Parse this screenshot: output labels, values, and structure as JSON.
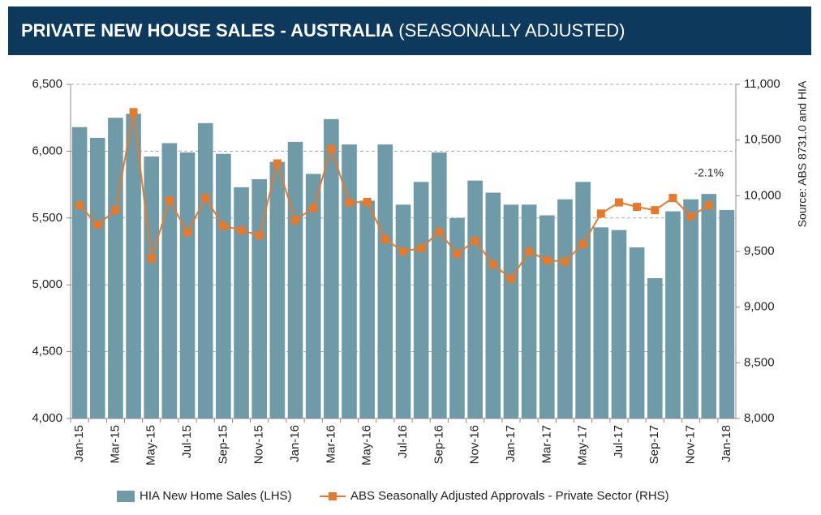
{
  "chart_data": {
    "type": "bar_line",
    "title": "PRIVATE NEW HOUSE SALES -  AUSTRALIA",
    "subtitle": "(SEASONALLY ADJUSTED)",
    "source": "Source: ABS 8731.0 and HIA",
    "annotation": "-2.1%",
    "categories": [
      "Jan-15",
      null,
      "Mar-15",
      null,
      "May-15",
      null,
      "Jul-15",
      null,
      "Sep-15",
      null,
      "Nov-15",
      null,
      "Jan-16",
      null,
      "Mar-16",
      null,
      "May-16",
      null,
      "Jul-16",
      null,
      "Sep-16",
      null,
      "Nov-16",
      null,
      "Jan-17",
      null,
      "Mar-17",
      null,
      "May-17",
      null,
      "Jul-17",
      null,
      "Sep-17",
      null,
      "Nov-17",
      null,
      "Jan-18"
    ],
    "series": [
      {
        "name": "HIA New Home Sales (LHS)",
        "color": "#6f9aa8",
        "axis": "y",
        "values": [
          6180,
          6100,
          6250,
          6280,
          5960,
          6060,
          5990,
          6210,
          5980,
          5730,
          5790,
          5920,
          6070,
          5830,
          6240,
          6050,
          5630,
          6050,
          5600,
          5770,
          5990,
          5500,
          5780,
          5690,
          5600,
          5600,
          5520,
          5640,
          5770,
          5430,
          5410,
          5280,
          5050,
          5550,
          5640,
          5680,
          5560
        ]
      },
      {
        "name": "ABS Seasonally Adjusted Approvals - Private Sector (RHS)",
        "color": "#e8782a",
        "axis": "y2",
        "values": [
          9915,
          9740,
          9870,
          10750,
          9435,
          9960,
          9670,
          9980,
          9730,
          9690,
          9645,
          10290,
          9780,
          9890,
          10420,
          9940,
          9945,
          9610,
          9500,
          9530,
          9675,
          9480,
          9595,
          9385,
          9255,
          9500,
          9420,
          9410,
          9565,
          9840,
          9940,
          9900,
          9870,
          9980,
          9815,
          9915,
          null
        ]
      }
    ],
    "ylim": [
      4000,
      6500
    ],
    "yticks": [
      {
        "value": 4000,
        "label": "4,000"
      },
      {
        "value": 4500,
        "label": "4,500"
      },
      {
        "value": 5000,
        "label": "5,000"
      },
      {
        "value": 5500,
        "label": "5,500"
      },
      {
        "value": 6000,
        "label": "6,000"
      },
      {
        "value": 6500,
        "label": "6,500"
      }
    ],
    "y2lim": [
      8000,
      11000
    ],
    "y2ticks": [
      {
        "value": 8000,
        "label": "8,000"
      },
      {
        "value": 8500,
        "label": "8,500"
      },
      {
        "value": 9000,
        "label": "9,000"
      },
      {
        "value": 9500,
        "label": "9,500"
      },
      {
        "value": 10000,
        "label": "10,000"
      },
      {
        "value": 10500,
        "label": "10,500"
      },
      {
        "value": 11000,
        "label": "11,000"
      }
    ],
    "grid": true
  }
}
